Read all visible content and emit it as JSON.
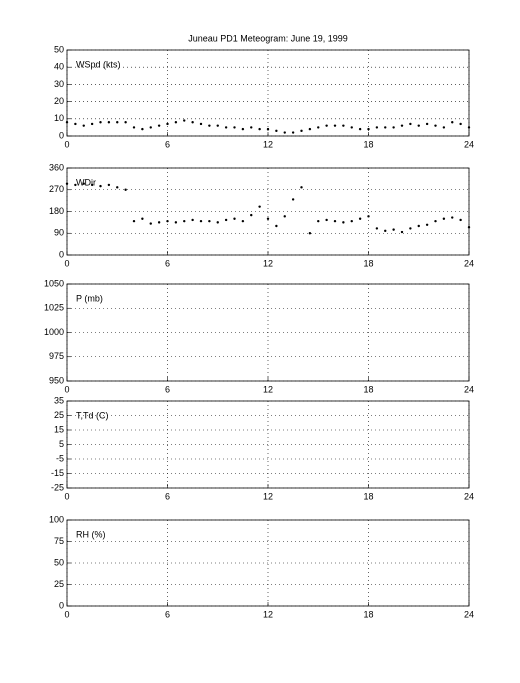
{
  "title": "Juneau PD1 Meteogram:      June 19, 1999",
  "chart_data": [
    {
      "type": "scatter",
      "ylabel": "WSpd (kts)",
      "color": "#000000",
      "grid": true,
      "xlim": [
        0,
        24
      ],
      "xticks": [
        0,
        6,
        12,
        18,
        24
      ],
      "ylim": [
        0,
        50
      ],
      "yticks": [
        0,
        10,
        20,
        30,
        40,
        50
      ],
      "x": [
        0,
        0.5,
        1,
        1.5,
        2,
        2.5,
        3,
        3.5,
        4,
        4.5,
        5,
        5.5,
        6,
        6.5,
        7,
        7.5,
        8,
        8.5,
        9,
        9.5,
        10,
        10.5,
        11,
        11.5,
        12,
        12.5,
        13,
        13.5,
        14,
        14.5,
        15,
        15.5,
        16,
        16.5,
        17,
        17.5,
        18,
        18.5,
        19,
        19.5,
        20,
        20.5,
        21,
        21.5,
        22,
        22.5,
        23,
        23.5,
        24
      ],
      "values": [
        8,
        7,
        6,
        7,
        8,
        8,
        8,
        8,
        5,
        4,
        5,
        6,
        7,
        8,
        9,
        8,
        7,
        6,
        6,
        5,
        5,
        4,
        5,
        4,
        4,
        3,
        2,
        2,
        3,
        4,
        5,
        6,
        6,
        6,
        5,
        4,
        4,
        5,
        5,
        5,
        6,
        7,
        6,
        7,
        6,
        5,
        8,
        7,
        5
      ]
    },
    {
      "type": "scatter",
      "ylabel": "WDir",
      "color": "#000000",
      "grid": true,
      "xlim": [
        0,
        24
      ],
      "xticks": [
        0,
        6,
        12,
        18,
        24
      ],
      "ylim": [
        0,
        360
      ],
      "yticks": [
        0,
        90,
        180,
        270,
        360
      ],
      "x": [
        0,
        0.5,
        1,
        1.5,
        2,
        2.5,
        3,
        3.5,
        4,
        4.5,
        5,
        5.5,
        6,
        6.5,
        7,
        7.5,
        8,
        8.5,
        9,
        9.5,
        10,
        10.5,
        11,
        11.5,
        12,
        12.5,
        13,
        13.5,
        14,
        14.5,
        15,
        15.5,
        16,
        16.5,
        17,
        17.5,
        18,
        18.5,
        19,
        19.5,
        20,
        20.5,
        21,
        21.5,
        22,
        22.5,
        23,
        23.5,
        24
      ],
      "values": [
        295,
        290,
        295,
        290,
        285,
        290,
        280,
        270,
        140,
        150,
        130,
        135,
        140,
        135,
        140,
        145,
        140,
        140,
        135,
        145,
        150,
        140,
        165,
        200,
        150,
        120,
        160,
        230,
        280,
        90,
        140,
        145,
        140,
        135,
        140,
        150,
        160,
        110,
        100,
        105,
        95,
        110,
        120,
        125,
        140,
        150,
        155,
        145,
        115
      ]
    },
    {
      "type": "scatter",
      "ylabel": "P (mb)",
      "grid": true,
      "xlim": [
        0,
        24
      ],
      "xticks": [
        0,
        6,
        12,
        18,
        24
      ],
      "ylim": [
        950,
        1050
      ],
      "yticks": [
        950,
        975,
        1000,
        1025,
        1050
      ]
    },
    {
      "type": "scatter",
      "ylabel": "T,Td (C)",
      "grid": true,
      "xlim": [
        0,
        24
      ],
      "xticks": [
        0,
        6,
        12,
        18,
        24
      ],
      "ylim": [
        -25,
        35
      ],
      "yticks": [
        -25,
        -15,
        -5,
        5,
        15,
        25,
        35
      ]
    },
    {
      "type": "scatter",
      "ylabel": "RH (%)",
      "grid": true,
      "xlim": [
        0,
        24
      ],
      "xticks": [
        0,
        6,
        12,
        18,
        24
      ],
      "ylim": [
        0,
        100
      ],
      "yticks": [
        0,
        25,
        50,
        75,
        100
      ]
    }
  ]
}
